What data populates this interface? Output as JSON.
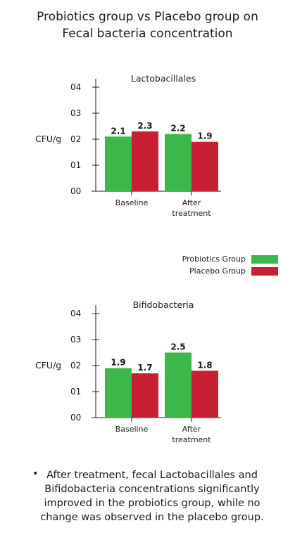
{
  "title": {
    "line1": "Probiotics group vs Placebo group on",
    "line2": "Fecal bacteria concentration"
  },
  "legend": {
    "items": [
      {
        "label": "Probiotics Group",
        "color": "#3cb84a"
      },
      {
        "label": "Placebo Group",
        "color": "#c81f32"
      }
    ]
  },
  "note": {
    "bullet": "•",
    "text": "After treatment, fecal Lactobacillales and Bifidobacteria concentrations significantly improved in the probiotics group, while no change was observed in the placebo group."
  },
  "chart_data": [
    {
      "type": "bar",
      "title": "Lactobacillales",
      "ylabel": "CFU/g",
      "xlabel": "",
      "ylim": [
        0,
        4
      ],
      "yticks": [
        "00",
        "01",
        "02",
        "03",
        "04"
      ],
      "categories": [
        [
          "Baseline"
        ],
        [
          "After",
          "treatment"
        ]
      ],
      "series": [
        {
          "name": "Probiotics Group",
          "color": "#3cb84a",
          "values": [
            2.1,
            2.2
          ],
          "labels": [
            "2.1",
            "2.2"
          ]
        },
        {
          "name": "Placebo Group",
          "color": "#c81f32",
          "values": [
            2.3,
            1.9
          ],
          "labels": [
            "2.3",
            "1.9"
          ]
        }
      ]
    },
    {
      "type": "bar",
      "title": "Bifidobacteria",
      "ylabel": "CFU/g",
      "xlabel": "",
      "ylim": [
        0,
        4
      ],
      "yticks": [
        "00",
        "01",
        "02",
        "03",
        "04"
      ],
      "categories": [
        [
          "Baseline"
        ],
        [
          "After",
          "treatment"
        ]
      ],
      "series": [
        {
          "name": "Probiotics Group",
          "color": "#3cb84a",
          "values": [
            1.9,
            2.5
          ],
          "labels": [
            "1.9",
            "2.5"
          ]
        },
        {
          "name": "Placebo Group",
          "color": "#c81f32",
          "values": [
            1.7,
            1.8
          ],
          "labels": [
            "1.7",
            "1.8"
          ]
        }
      ]
    }
  ]
}
